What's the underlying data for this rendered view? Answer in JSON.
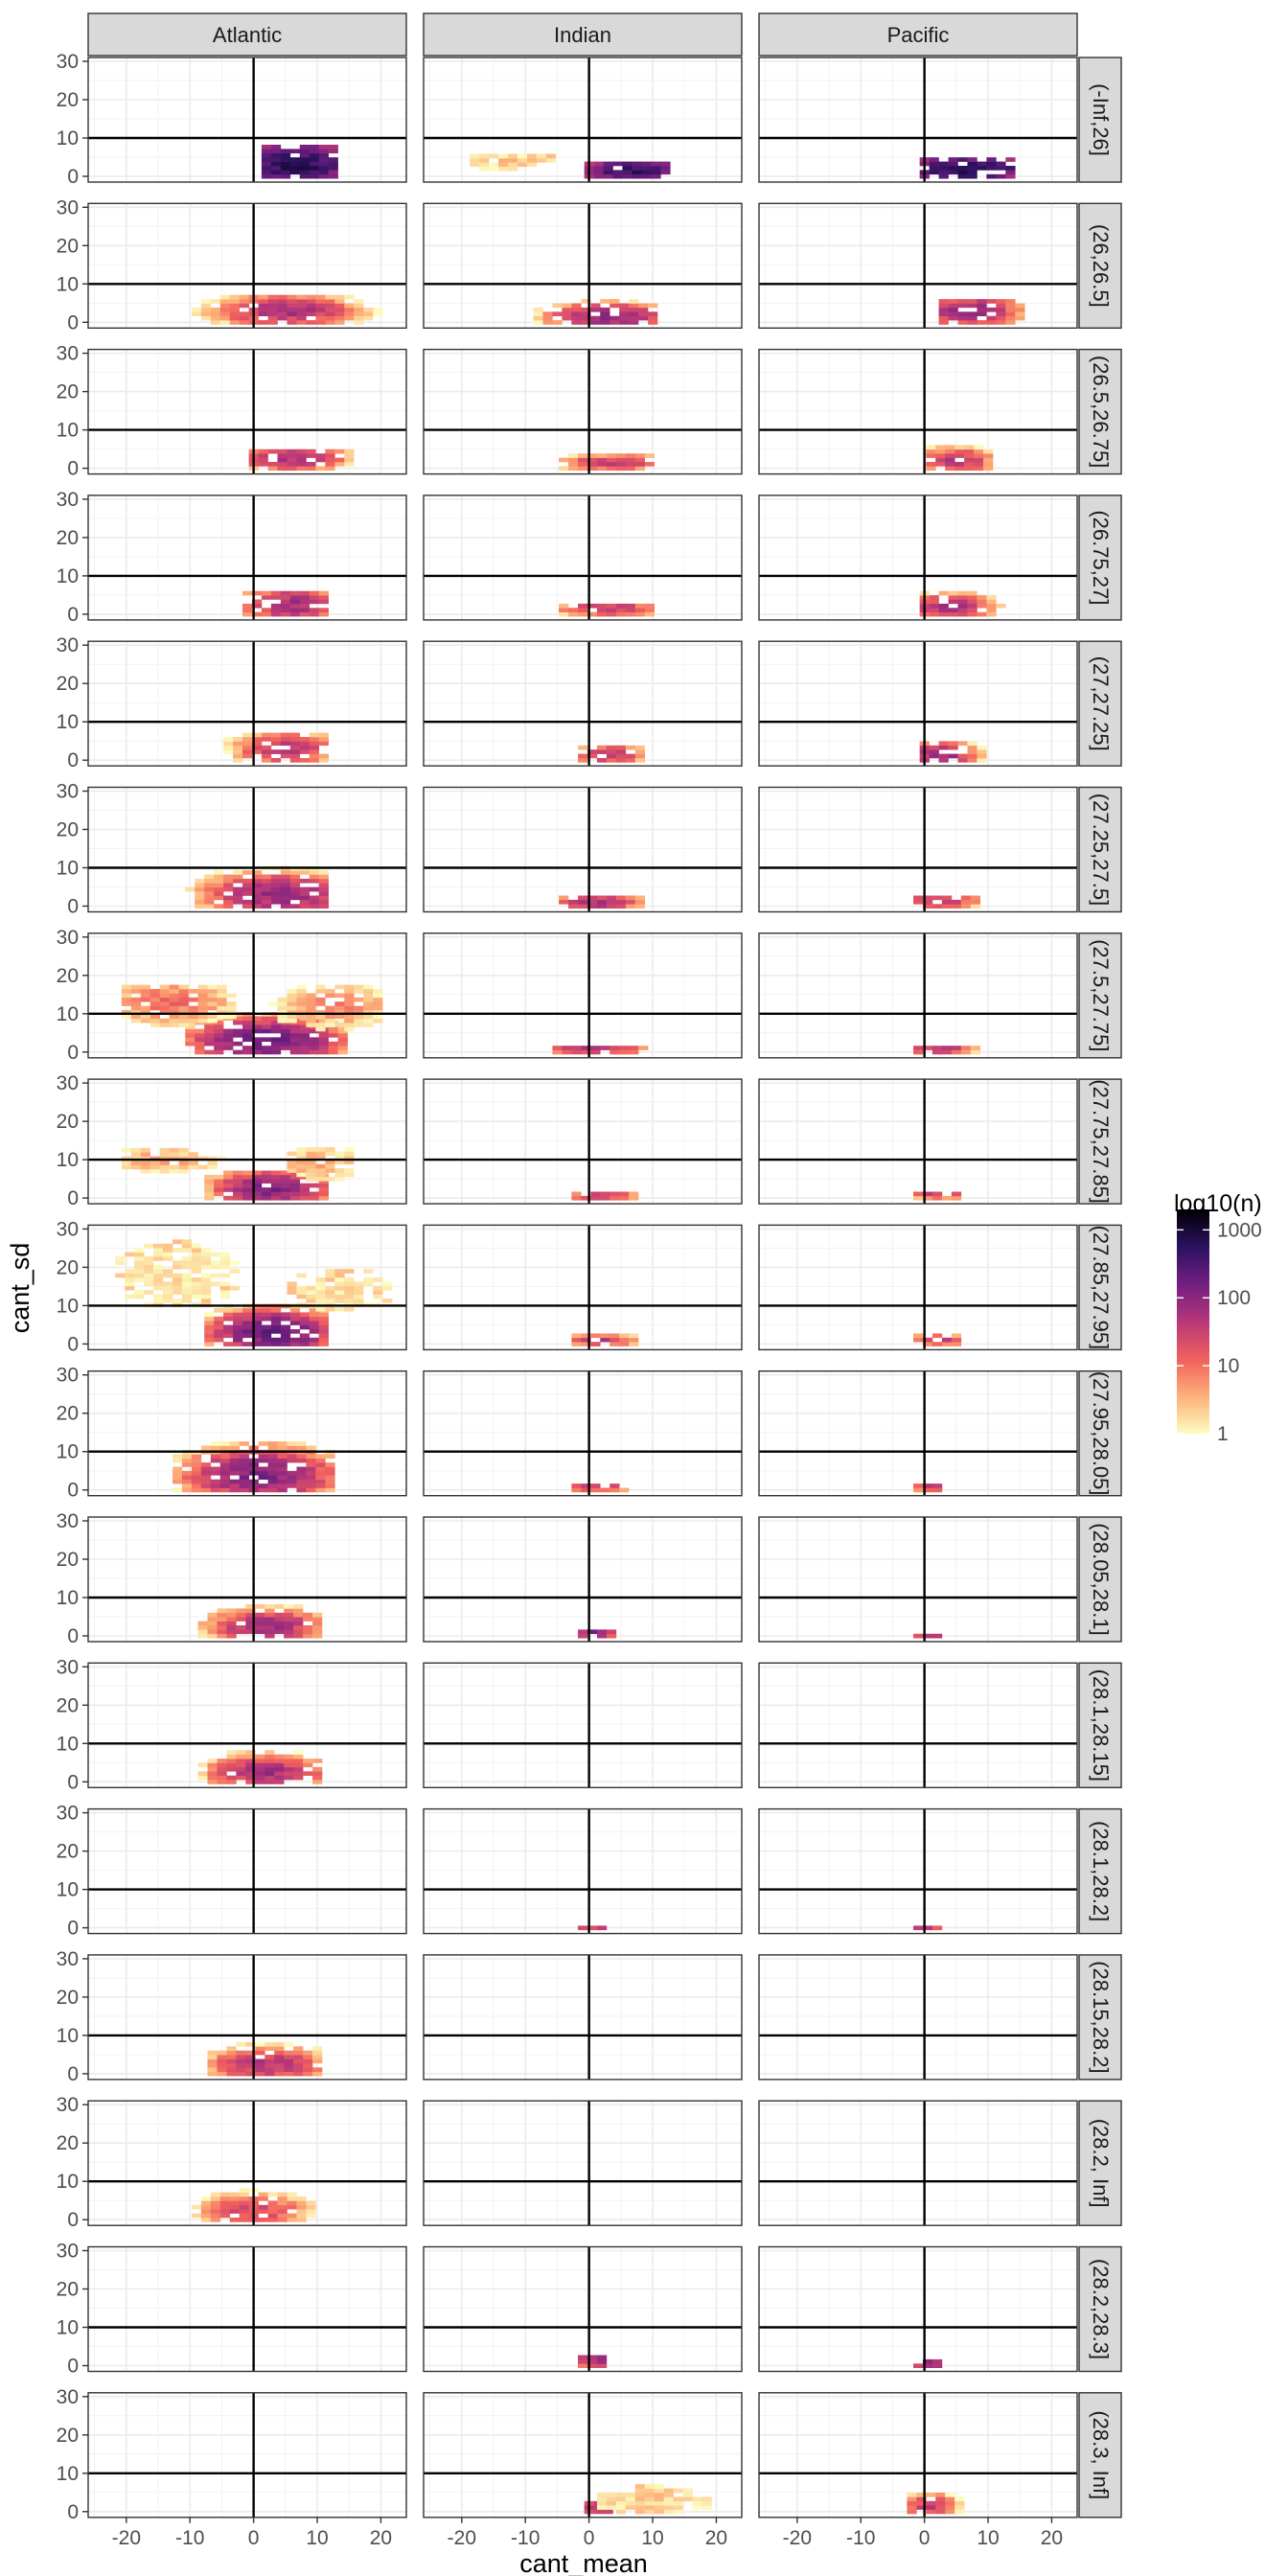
{
  "chart_data": {
    "type": "heatmap",
    "title": "",
    "xlabel": "cant_mean",
    "ylabel": "cant_sd",
    "xlim": [
      -26,
      24
    ],
    "ylim": [
      -1.5,
      31
    ],
    "x_ticks": [
      -20,
      -10,
      0,
      10,
      20
    ],
    "x_tick_labels": [
      "-20",
      "-10",
      "0",
      "10",
      "20"
    ],
    "y_ticks": [
      0,
      10,
      20,
      30
    ],
    "y_tick_labels": [
      "0",
      "10",
      "20",
      "30"
    ],
    "reference_lines": {
      "x": 0,
      "y": 10
    },
    "columns": [
      "Atlantic",
      "Indian",
      "Pacific"
    ],
    "rows": [
      "(-Inf,26]",
      "(26,26.5]",
      "(26.5,26.75]",
      "(26.75,27]",
      "(27,27.25]",
      "(27.25,27.5]",
      "(27.5,27.75]",
      "(27.75,27.85]",
      "(27.85,27.95]",
      "(27.95,28.05]",
      "(28.05,28.1]",
      "(28.1,28.15]",
      "(28.1,28.2]",
      "(28.15,28.2]",
      "(28.2, Inf]",
      "(28.2,28.3]",
      "(28.3, Inf]"
    ],
    "bin_width_x": 1.5,
    "bin_width_y": 1.1,
    "legend": {
      "title": "log10(n)",
      "scale": "log10",
      "breaks": [
        1,
        10,
        100,
        1000
      ],
      "break_labels": [
        "1",
        "10",
        "100",
        "1000"
      ],
      "range": [
        1,
        2000
      ],
      "palette": [
        "#fcfdbf",
        "#feb078",
        "#f1605d",
        "#b73779",
        "#721f81",
        "#2c115f",
        "#000004"
      ],
      "position": "right"
    },
    "panels": [
      {
        "row": 0,
        "col": 0,
        "blobs": [
          {
            "cx": 7,
            "cy": 3,
            "sx": 4,
            "sy": 2.5,
            "peak": 800,
            "x0": 2,
            "x1": 13,
            "y0": 0,
            "y1": 8
          }
        ]
      },
      {
        "row": 0,
        "col": 1,
        "blobs": [
          {
            "cx": 7,
            "cy": 1.5,
            "sx": 3.5,
            "sy": 1.5,
            "peak": 600,
            "x0": 0,
            "x1": 13,
            "y0": 0,
            "y1": 4
          },
          {
            "cx": -12,
            "cy": 4,
            "sx": 5,
            "sy": 1.5,
            "peak": 3,
            "x0": -24,
            "x1": -1,
            "y0": 2,
            "y1": 6
          }
        ]
      },
      {
        "row": 0,
        "col": 2,
        "blobs": [
          {
            "cx": 7,
            "cy": 2,
            "sx": 4.5,
            "sy": 1.5,
            "peak": 900,
            "x0": 0,
            "x1": 14,
            "y0": 0,
            "y1": 5
          }
        ]
      },
      {
        "row": 1,
        "col": 0,
        "blobs": [
          {
            "cx": 5,
            "cy": 3,
            "sx": 5,
            "sy": 1.8,
            "peak": 70,
            "x0": -12,
            "x1": 20,
            "y0": 0,
            "y1": 7
          }
        ]
      },
      {
        "row": 1,
        "col": 1,
        "blobs": [
          {
            "cx": 3,
            "cy": 1.5,
            "sx": 4,
            "sy": 1.5,
            "peak": 120,
            "x0": -8,
            "x1": 11,
            "y0": 0,
            "y1": 7
          }
        ]
      },
      {
        "row": 1,
        "col": 2,
        "blobs": [
          {
            "cx": 7,
            "cy": 3,
            "sx": 3.5,
            "sy": 1.8,
            "peak": 90,
            "x0": 3,
            "x1": 16,
            "y0": 0,
            "y1": 6
          }
        ]
      },
      {
        "row": 2,
        "col": 0,
        "blobs": [
          {
            "cx": 6,
            "cy": 2.5,
            "sx": 4,
            "sy": 1.5,
            "peak": 60,
            "x0": 0,
            "x1": 15,
            "y0": 0,
            "y1": 5
          }
        ]
      },
      {
        "row": 2,
        "col": 1,
        "blobs": [
          {
            "cx": 4,
            "cy": 1.5,
            "sx": 4,
            "sy": 1.0,
            "peak": 40,
            "x0": -4,
            "x1": 10,
            "y0": 0,
            "y1": 4
          }
        ]
      },
      {
        "row": 2,
        "col": 2,
        "blobs": [
          {
            "cx": 5,
            "cy": 2,
            "sx": 2.5,
            "sy": 1.5,
            "peak": 60,
            "x0": 1,
            "x1": 10,
            "y0": 0,
            "y1": 7
          }
        ]
      },
      {
        "row": 3,
        "col": 0,
        "blobs": [
          {
            "cx": 6,
            "cy": 2.5,
            "sx": 3.5,
            "sy": 2,
            "peak": 80,
            "x0": -1,
            "x1": 12,
            "y0": 0,
            "y1": 6
          }
        ]
      },
      {
        "row": 3,
        "col": 1,
        "blobs": [
          {
            "cx": 3,
            "cy": 1.5,
            "sx": 3.5,
            "sy": 1.0,
            "peak": 50,
            "x0": -4,
            "x1": 10,
            "y0": 0,
            "y1": 3
          }
        ]
      },
      {
        "row": 3,
        "col": 2,
        "blobs": [
          {
            "cx": 4,
            "cy": 2,
            "sx": 3,
            "sy": 1.5,
            "peak": 70,
            "x0": 0,
            "x1": 12,
            "y0": 0,
            "y1": 6
          }
        ]
      },
      {
        "row": 4,
        "col": 0,
        "blobs": [
          {
            "cx": 5,
            "cy": 3,
            "sx": 3.5,
            "sy": 2,
            "peak": 50,
            "x0": -4,
            "x1": 12,
            "y0": 0,
            "y1": 7
          }
        ]
      },
      {
        "row": 4,
        "col": 1,
        "blobs": [
          {
            "cx": 3,
            "cy": 1.5,
            "sx": 2.5,
            "sy": 1.2,
            "peak": 50,
            "x0": -1,
            "x1": 8,
            "y0": 0,
            "y1": 4
          }
        ]
      },
      {
        "row": 4,
        "col": 2,
        "blobs": [
          {
            "cx": 2.5,
            "cy": 1.5,
            "sx": 2.5,
            "sy": 1.5,
            "peak": 90,
            "x0": 0,
            "x1": 9,
            "y0": 0,
            "y1": 5
          }
        ]
      },
      {
        "row": 5,
        "col": 0,
        "blobs": [
          {
            "cx": 4,
            "cy": 3,
            "sx": 5,
            "sy": 2.5,
            "peak": 100,
            "x0": -10,
            "x1": 12,
            "y0": 0,
            "y1": 12
          }
        ]
      },
      {
        "row": 5,
        "col": 1,
        "blobs": [
          {
            "cx": 1,
            "cy": 1,
            "sx": 3,
            "sy": 1.0,
            "peak": 80,
            "x0": -4,
            "x1": 8,
            "y0": 0,
            "y1": 3
          }
        ]
      },
      {
        "row": 5,
        "col": 2,
        "blobs": [
          {
            "cx": 2,
            "cy": 1.5,
            "sx": 3,
            "sy": 1.0,
            "peak": 50,
            "x0": -1,
            "x1": 8,
            "y0": 0,
            "y1": 3
          }
        ]
      },
      {
        "row": 6,
        "col": 0,
        "blobs": [
          {
            "cx": 2,
            "cy": 3,
            "sx": 5,
            "sy": 2.5,
            "peak": 200,
            "x0": -10,
            "x1": 14,
            "y0": 0,
            "y1": 10
          },
          {
            "cx": -13,
            "cy": 13,
            "sx": 5,
            "sy": 3,
            "peak": 12,
            "x0": -20,
            "x1": -3,
            "y0": 6,
            "y1": 17
          },
          {
            "cx": 13,
            "cy": 12,
            "sx": 5,
            "sy": 3,
            "peak": 8,
            "x0": 3,
            "x1": 20,
            "y0": 6,
            "y1": 17
          }
        ]
      },
      {
        "row": 6,
        "col": 1,
        "blobs": [
          {
            "cx": 1,
            "cy": 1,
            "sx": 4,
            "sy": 0.8,
            "peak": 50,
            "x0": -5,
            "x1": 9,
            "y0": 0,
            "y1": 2
          }
        ]
      },
      {
        "row": 6,
        "col": 2,
        "blobs": [
          {
            "cx": 2,
            "cy": 1,
            "sx": 3,
            "sy": 0.8,
            "peak": 50,
            "x0": -1,
            "x1": 8,
            "y0": 0,
            "y1": 2
          }
        ]
      },
      {
        "row": 7,
        "col": 0,
        "blobs": [
          {
            "cx": 3,
            "cy": 2.5,
            "sx": 4,
            "sy": 2,
            "peak": 150,
            "x0": -7,
            "x1": 12,
            "y0": 0,
            "y1": 7
          },
          {
            "cx": -14,
            "cy": 10,
            "sx": 5,
            "sy": 2,
            "peak": 5,
            "x0": -20,
            "x1": -5,
            "y0": 7,
            "y1": 13
          },
          {
            "cx": 10,
            "cy": 9,
            "sx": 4,
            "sy": 2.5,
            "peak": 5,
            "x0": 6,
            "x1": 16,
            "y0": 5,
            "y1": 15
          }
        ]
      },
      {
        "row": 7,
        "col": 1,
        "blobs": [
          {
            "cx": 2,
            "cy": 0.6,
            "sx": 2.5,
            "sy": 0.5,
            "peak": 60,
            "x0": -2,
            "x1": 8,
            "y0": 0,
            "y1": 2
          }
        ]
      },
      {
        "row": 7,
        "col": 2,
        "blobs": [
          {
            "cx": 2,
            "cy": 1,
            "sx": 2.5,
            "sy": 0.6,
            "peak": 40,
            "x0": -1,
            "x1": 6,
            "y0": 0,
            "y1": 2
          }
        ]
      },
      {
        "row": 8,
        "col": 0,
        "blobs": [
          {
            "cx": 3,
            "cy": 3,
            "sx": 4,
            "sy": 2.5,
            "peak": 250,
            "x0": -7,
            "x1": 12,
            "y0": 0,
            "y1": 10
          },
          {
            "cx": -12,
            "cy": 18,
            "sx": 7,
            "sy": 6,
            "peak": 2,
            "x0": -24,
            "x1": -2,
            "y0": 8,
            "y1": 28
          },
          {
            "cx": 14,
            "cy": 14,
            "sx": 6,
            "sy": 4,
            "peak": 2,
            "x0": 6,
            "x1": 22,
            "y0": 8,
            "y1": 22
          }
        ]
      },
      {
        "row": 8,
        "col": 1,
        "blobs": [
          {
            "cx": 2,
            "cy": 1,
            "sx": 2.5,
            "sy": 0.7,
            "peak": 50,
            "x0": -2,
            "x1": 7,
            "y0": 0,
            "y1": 3
          }
        ]
      },
      {
        "row": 8,
        "col": 2,
        "blobs": [
          {
            "cx": 2,
            "cy": 1,
            "sx": 2.5,
            "sy": 0.7,
            "peak": 40,
            "x0": -1,
            "x1": 6,
            "y0": 0,
            "y1": 3
          }
        ]
      },
      {
        "row": 9,
        "col": 0,
        "blobs": [
          {
            "cx": 1,
            "cy": 4,
            "sx": 5,
            "sy": 3,
            "peak": 150,
            "x0": -12,
            "x1": 12,
            "y0": 0,
            "y1": 13
          }
        ]
      },
      {
        "row": 9,
        "col": 1,
        "blobs": [
          {
            "cx": 1,
            "cy": 1,
            "sx": 2.5,
            "sy": 0.7,
            "peak": 50,
            "x0": -2,
            "x1": 6,
            "y0": 0,
            "y1": 2
          }
        ]
      },
      {
        "row": 9,
        "col": 2,
        "blobs": [
          {
            "cx": 1,
            "cy": 1,
            "sx": 1.5,
            "sy": 0.7,
            "peak": 40,
            "x0": -1,
            "x1": 3,
            "y0": 0,
            "y1": 2
          }
        ]
      },
      {
        "row": 10,
        "col": 0,
        "blobs": [
          {
            "cx": 2,
            "cy": 2.5,
            "sx": 4,
            "sy": 2,
            "peak": 80,
            "x0": -8,
            "x1": 11,
            "y0": 0,
            "y1": 8
          }
        ]
      },
      {
        "row": 10,
        "col": 1,
        "blobs": [
          {
            "cx": 1,
            "cy": 0.7,
            "sx": 1.5,
            "sy": 0.5,
            "peak": 200,
            "x0": -1,
            "x1": 4,
            "y0": 0,
            "y1": 2
          }
        ]
      },
      {
        "row": 10,
        "col": 2,
        "blobs": [
          {
            "cx": 1,
            "cy": 0.7,
            "sx": 1.5,
            "sy": 0.4,
            "peak": 200,
            "x0": -1,
            "x1": 3,
            "y0": 0,
            "y1": 1
          }
        ]
      },
      {
        "row": 11,
        "col": 0,
        "blobs": [
          {
            "cx": 2,
            "cy": 2.5,
            "sx": 4,
            "sy": 2,
            "peak": 80,
            "x0": -8,
            "x1": 11,
            "y0": 0,
            "y1": 9
          }
        ]
      },
      {
        "row": 11,
        "col": 1,
        "blobs": []
      },
      {
        "row": 11,
        "col": 2,
        "blobs": []
      },
      {
        "row": 12,
        "col": 0,
        "blobs": []
      },
      {
        "row": 12,
        "col": 1,
        "blobs": [
          {
            "cx": 0.5,
            "cy": 0.7,
            "sx": 1.5,
            "sy": 0.4,
            "peak": 200,
            "x0": -1,
            "x1": 2,
            "y0": 0,
            "y1": 1
          }
        ]
      },
      {
        "row": 12,
        "col": 2,
        "blobs": [
          {
            "cx": 0.5,
            "cy": 0.7,
            "sx": 1.5,
            "sy": 0.4,
            "peak": 200,
            "x0": -1,
            "x1": 2,
            "y0": 0,
            "y1": 1
          }
        ]
      },
      {
        "row": 13,
        "col": 0,
        "blobs": [
          {
            "cx": 2,
            "cy": 2.5,
            "sx": 4,
            "sy": 2,
            "peak": 60,
            "x0": -8,
            "x1": 11,
            "y0": 0,
            "y1": 9
          }
        ]
      },
      {
        "row": 13,
        "col": 1,
        "blobs": []
      },
      {
        "row": 13,
        "col": 2,
        "blobs": []
      },
      {
        "row": 14,
        "col": 0,
        "blobs": [
          {
            "cx": 0,
            "cy": 2.5,
            "sx": 4,
            "sy": 2,
            "peak": 30,
            "x0": -12,
            "x1": 12,
            "y0": 0,
            "y1": 9
          }
        ]
      },
      {
        "row": 14,
        "col": 1,
        "blobs": []
      },
      {
        "row": 14,
        "col": 2,
        "blobs": []
      },
      {
        "row": 15,
        "col": 0,
        "blobs": []
      },
      {
        "row": 15,
        "col": 1,
        "blobs": [
          {
            "cx": 1,
            "cy": 1.5,
            "sx": 1.5,
            "sy": 1.2,
            "peak": 100,
            "x0": -1,
            "x1": 3,
            "y0": 0,
            "y1": 3
          }
        ]
      },
      {
        "row": 15,
        "col": 2,
        "blobs": [
          {
            "cx": 1,
            "cy": 1,
            "sx": 1.5,
            "sy": 1.0,
            "peak": 80,
            "x0": -1,
            "x1": 3,
            "y0": 0,
            "y1": 2
          }
        ]
      },
      {
        "row": 16,
        "col": 0,
        "blobs": []
      },
      {
        "row": 16,
        "col": 1,
        "blobs": [
          {
            "cx": 2,
            "cy": 1,
            "sx": 2,
            "sy": 1,
            "peak": 60,
            "x0": 0,
            "x1": 4,
            "y0": 0,
            "y1": 3
          },
          {
            "cx": 10,
            "cy": 3,
            "sx": 6,
            "sy": 2.5,
            "peak": 3,
            "x0": 2,
            "x1": 21,
            "y0": 0,
            "y1": 7
          }
        ]
      },
      {
        "row": 16,
        "col": 2,
        "blobs": [
          {
            "cx": 1,
            "cy": 1.5,
            "sx": 2,
            "sy": 1.5,
            "peak": 40,
            "x0": -2,
            "x1": 6,
            "y0": 0,
            "y1": 5
          }
        ]
      }
    ]
  }
}
